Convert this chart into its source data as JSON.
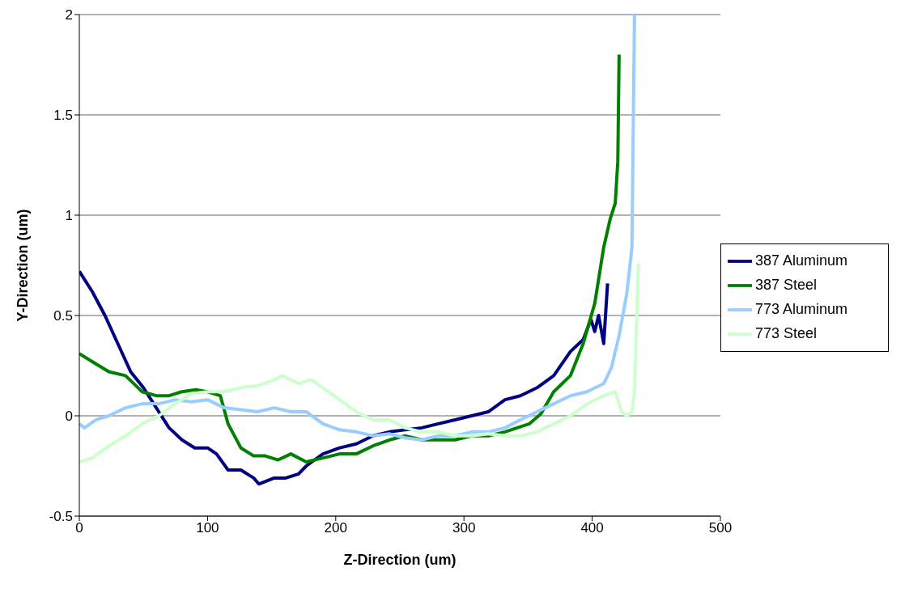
{
  "chart_data": {
    "type": "line",
    "xlabel": "Z-Direction (um)",
    "ylabel": "Y-Direction (um)",
    "xlim": [
      0,
      500
    ],
    "xticks": [
      0,
      100,
      200,
      300,
      400,
      500
    ],
    "ylim": [
      -0.5,
      2
    ],
    "yticks": [
      -0.5,
      0,
      0.5,
      1,
      1.5,
      2
    ],
    "grid": "y",
    "legend": "right",
    "marker": "none",
    "line_style": "solid",
    "series": [
      {
        "name": "387 Aluminum",
        "color": "#000080",
        "x": [
          0,
          10,
          20,
          30,
          40,
          50,
          60,
          70,
          80,
          90,
          100,
          107,
          116,
          126,
          136,
          140,
          152,
          161,
          171,
          177,
          190,
          203,
          216,
          229,
          242,
          254,
          267,
          280,
          293,
          306,
          319,
          332,
          344,
          357,
          370,
          383,
          393,
          399,
          402,
          405,
          409,
          412
        ],
        "values": [
          0.72,
          0.62,
          0.5,
          0.36,
          0.22,
          0.14,
          0.04,
          -0.06,
          -0.12,
          -0.16,
          -0.16,
          -0.19,
          -0.27,
          -0.27,
          -0.31,
          -0.34,
          -0.31,
          -0.31,
          -0.29,
          -0.25,
          -0.19,
          -0.16,
          -0.14,
          -0.1,
          -0.08,
          -0.07,
          -0.06,
          -0.04,
          -0.02,
          0,
          0.02,
          0.08,
          0.1,
          0.14,
          0.2,
          0.32,
          0.38,
          0.48,
          0.42,
          0.5,
          0.36,
          0.66
        ]
      },
      {
        "name": "387 Steel",
        "color": "#008000",
        "x": [
          0,
          10,
          23,
          36,
          49,
          60,
          70,
          80,
          91,
          100,
          110,
          116,
          126,
          136,
          145,
          155,
          165,
          177,
          190,
          203,
          216,
          229,
          242,
          254,
          267,
          280,
          293,
          306,
          319,
          332,
          351,
          360,
          370,
          383,
          393,
          402,
          409,
          414,
          418,
          420,
          421
        ],
        "values": [
          0.31,
          0.27,
          0.22,
          0.2,
          0.12,
          0.1,
          0.1,
          0.12,
          0.13,
          0.12,
          0.1,
          -0.04,
          -0.16,
          -0.2,
          -0.2,
          -0.22,
          -0.19,
          -0.23,
          -0.21,
          -0.19,
          -0.19,
          -0.15,
          -0.12,
          -0.1,
          -0.12,
          -0.12,
          -0.12,
          -0.1,
          -0.1,
          -0.08,
          -0.04,
          0.01,
          0.12,
          0.2,
          0.36,
          0.56,
          0.84,
          0.98,
          1.06,
          1.27,
          1.8
        ]
      },
      {
        "name": "773 Aluminum",
        "color": "#99ccff",
        "x": [
          0,
          4,
          13,
          23,
          36,
          49,
          62,
          75,
          87,
          100,
          113,
          126,
          139,
          152,
          165,
          177,
          190,
          203,
          216,
          229,
          242,
          254,
          267,
          280,
          293,
          306,
          319,
          332,
          344,
          357,
          370,
          383,
          396,
          409,
          415,
          421,
          427,
          431,
          433
        ],
        "values": [
          -0.04,
          -0.06,
          -0.02,
          0,
          0.04,
          0.06,
          0.06,
          0.08,
          0.07,
          0.08,
          0.04,
          0.03,
          0.02,
          0.04,
          0.02,
          0.02,
          -0.04,
          -0.07,
          -0.08,
          -0.1,
          -0.09,
          -0.11,
          -0.12,
          -0.1,
          -0.1,
          -0.08,
          -0.08,
          -0.06,
          -0.02,
          0.02,
          0.06,
          0.1,
          0.12,
          0.16,
          0.24,
          0.4,
          0.61,
          0.84,
          2
        ]
      },
      {
        "name": "773 Steel",
        "color": "#ccffcc",
        "x": [
          0,
          10,
          23,
          36,
          49,
          62,
          75,
          87,
          100,
          113,
          126,
          139,
          152,
          158,
          171,
          181,
          190,
          203,
          216,
          229,
          242,
          254,
          267,
          280,
          293,
          306,
          319,
          332,
          344,
          357,
          370,
          383,
          396,
          409,
          418,
          423,
          427,
          431,
          433,
          436
        ],
        "values": [
          -0.23,
          -0.21,
          -0.15,
          -0.1,
          -0.04,
          0,
          0.06,
          0.11,
          0.12,
          0.12,
          0.14,
          0.15,
          0.18,
          0.2,
          0.16,
          0.18,
          0.14,
          0.08,
          0.02,
          -0.02,
          -0.02,
          -0.06,
          -0.08,
          -0.08,
          -0.1,
          -0.1,
          -0.09,
          -0.1,
          -0.1,
          -0.08,
          -0.04,
          0,
          0.06,
          0.1,
          0.12,
          0.02,
          0,
          0.02,
          0.12,
          0.76
        ]
      }
    ]
  }
}
